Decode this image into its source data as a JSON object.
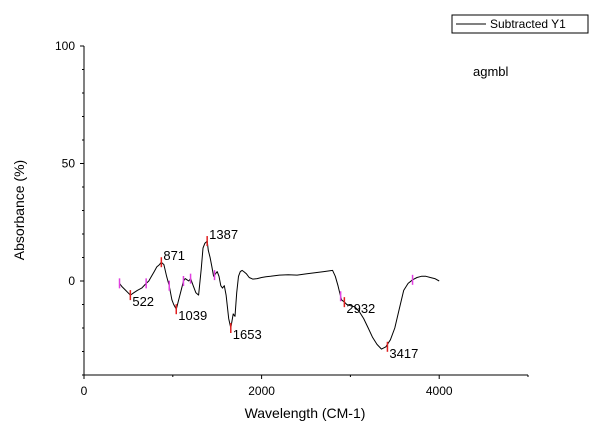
{
  "chart_data": {
    "type": "line",
    "xlabel": "Wavelength (CM-1)",
    "ylabel": "Absorbance (%)",
    "xlim": [
      0,
      5000
    ],
    "ylim": [
      -40,
      100
    ],
    "x_ticks": [
      0,
      2000,
      4000
    ],
    "y_ticks": [
      0,
      50,
      100
    ],
    "x_tick_labels": [
      "0",
      "2000",
      "4000"
    ],
    "y_tick_labels": [
      "0",
      "50",
      "100"
    ],
    "annotation": "agmbl",
    "legend": {
      "position": "top-right",
      "entries": [
        "Subtracted Y1"
      ]
    },
    "series": [
      {
        "name": "Subtracted Y1",
        "color": "#000000",
        "x": [
          400,
          430,
          470,
          522,
          560,
          600,
          650,
          700,
          730,
          760,
          790,
          820,
          850,
          871,
          900,
          930,
          960,
          990,
          1010,
          1039,
          1060,
          1080,
          1100,
          1120,
          1140,
          1160,
          1180,
          1200,
          1230,
          1260,
          1290,
          1320,
          1340,
          1360,
          1387,
          1400,
          1420,
          1440,
          1460,
          1480,
          1500,
          1520,
          1540,
          1560,
          1580,
          1600,
          1630,
          1653,
          1680,
          1700,
          1720,
          1740,
          1760,
          1780,
          1800,
          1830,
          1860,
          1900,
          1950,
          2000,
          2050,
          2100,
          2200,
          2300,
          2400,
          2500,
          2600,
          2700,
          2800,
          2830,
          2860,
          2880,
          2900,
          2932,
          2960,
          3000,
          3050,
          3100,
          3150,
          3200,
          3250,
          3300,
          3350,
          3400,
          3417,
          3450,
          3500,
          3550,
          3600,
          3650,
          3700,
          3750,
          3800,
          3850,
          3900,
          3950,
          4000
        ],
        "y": [
          -1,
          -2.5,
          -4,
          -6,
          -5,
          -4,
          -3,
          -1,
          0,
          2,
          4,
          6,
          7,
          8,
          7,
          2,
          -2,
          -8,
          -10,
          -12,
          -9,
          -6,
          -3,
          0,
          1,
          0.5,
          0,
          1,
          -2,
          -5,
          -6,
          5,
          14,
          16,
          17,
          13,
          10,
          6,
          2,
          3,
          4,
          2,
          -2,
          -3,
          -2,
          -6,
          -16,
          -20,
          -14,
          -15,
          -5,
          2,
          4,
          4.5,
          4,
          3,
          1.5,
          0.8,
          1,
          1.5,
          1.8,
          2,
          2.5,
          2.7,
          2.5,
          3,
          3.5,
          4,
          4.5,
          2,
          -2,
          -5,
          -8,
          -9,
          -10,
          -10.5,
          -11,
          -13,
          -16,
          -20,
          -24,
          -27,
          -29,
          -28,
          -27,
          -25,
          -20,
          -12,
          -4,
          -1,
          0.5,
          1.5,
          2,
          2,
          1.5,
          1,
          0
        ],
        "peaks": [
          {
            "x": 522,
            "y": -6,
            "label": "522"
          },
          {
            "x": 871,
            "y": 8,
            "label": "871"
          },
          {
            "x": 1039,
            "y": -12,
            "label": "1039"
          },
          {
            "x": 1387,
            "y": 17,
            "label": "1387"
          },
          {
            "x": 1653,
            "y": -20,
            "label": "1653"
          },
          {
            "x": 2932,
            "y": -9,
            "label": "2932"
          },
          {
            "x": 3417,
            "y": -28,
            "label": "3417"
          }
        ],
        "markers_x": [
          400,
          700,
          960,
          1120,
          1200,
          1470,
          2890,
          3700
        ]
      }
    ]
  }
}
